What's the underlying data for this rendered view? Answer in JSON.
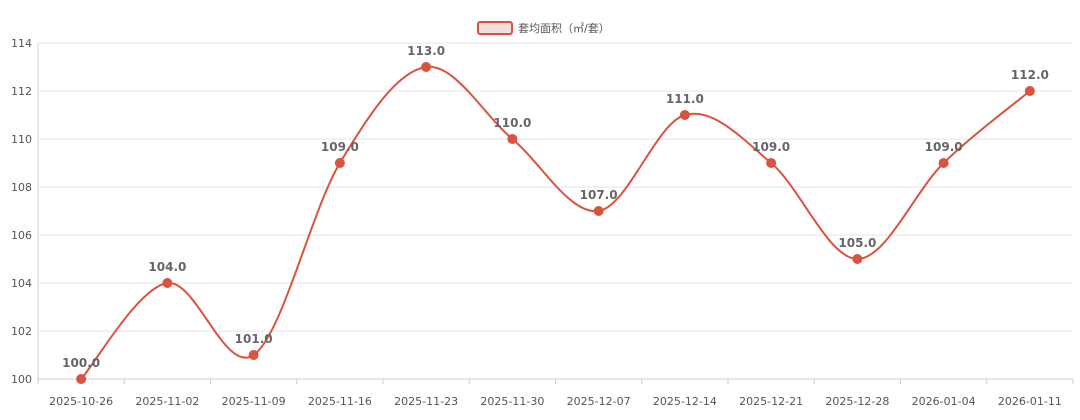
{
  "chart_data": {
    "type": "line",
    "categories": [
      "2025-10-26",
      "2025-11-02",
      "2025-11-09",
      "2025-11-16",
      "2025-11-23",
      "2025-11-30",
      "2025-12-07",
      "2025-12-14",
      "2025-12-21",
      "2025-12-28",
      "2026-01-04",
      "2026-01-11"
    ],
    "series": [
      {
        "name": "套均面积（㎡/套）",
        "values": [
          100.0,
          104.0,
          101.0,
          109.0,
          113.0,
          110.0,
          107.0,
          111.0,
          109.0,
          105.0,
          109.0,
          112.0
        ],
        "color": "#d9533f",
        "data_labels": [
          "100.0",
          "104.0",
          "101.0",
          "109.0",
          "113.0",
          "110.0",
          "107.0",
          "111.0",
          "109.0",
          "105.0",
          "109.0",
          "112.0"
        ]
      }
    ],
    "ylim": [
      100,
      114
    ],
    "yticks": [
      100,
      102,
      104,
      106,
      108,
      110,
      112,
      114
    ],
    "xlabel": "",
    "ylabel": "",
    "grid": true,
    "legend_position": "top-center",
    "smooth": true,
    "colors": {
      "line": "#d9533f",
      "legend_fill": "#f2dede",
      "grid": "#e6e6e6",
      "axis": "#cccccc"
    }
  }
}
